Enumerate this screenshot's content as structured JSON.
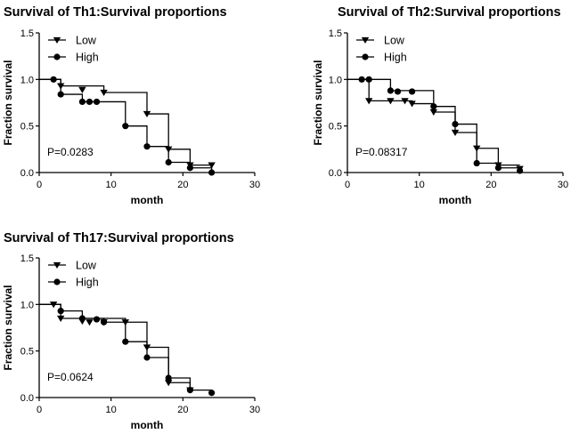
{
  "colors": {
    "ink": "#000000",
    "background": "#ffffff"
  },
  "chart_data": [
    {
      "type": "line",
      "subtype": "kaplan-meier",
      "title": "Survival of Th1:Survival proportions",
      "xlabel": "month",
      "ylabel": "Fraction survival",
      "xlim": [
        0,
        30
      ],
      "ylim": [
        0,
        1.5
      ],
      "xticks": [
        0,
        10,
        20,
        30
      ],
      "yticks": [
        0.0,
        0.5,
        1.0,
        1.5
      ],
      "xtick_labels": [
        "0",
        "10",
        "20",
        "30"
      ],
      "ytick_labels": [
        "0.0",
        "0.5",
        "1.0",
        "1.5"
      ],
      "annotation": "P=0.0283",
      "legend_position": "top-left",
      "series": [
        {
          "name": "Low",
          "marker": "triangle-down",
          "steps": [
            [
              0,
              1.0
            ],
            [
              3,
              0.93
            ],
            [
              9,
              0.86
            ],
            [
              15,
              0.63
            ],
            [
              18,
              0.25
            ],
            [
              21,
              0.08
            ]
          ],
          "end_x": 24,
          "censored": [
            [
              3,
              0.93
            ],
            [
              6,
              0.89
            ],
            [
              9,
              0.86
            ],
            [
              15,
              0.63
            ],
            [
              18,
              0.25
            ],
            [
              21,
              0.08
            ],
            [
              24,
              0.08
            ]
          ]
        },
        {
          "name": "High",
          "marker": "circle",
          "steps": [
            [
              0,
              1.0
            ],
            [
              3,
              0.84
            ],
            [
              6,
              0.76
            ],
            [
              12,
              0.5
            ],
            [
              15,
              0.28
            ],
            [
              18,
              0.11
            ],
            [
              21,
              0.05
            ],
            [
              24,
              0.0
            ]
          ],
          "end_x": 24,
          "censored": [
            [
              2,
              1.0
            ],
            [
              3,
              0.84
            ],
            [
              6,
              0.76
            ],
            [
              7,
              0.76
            ],
            [
              8,
              0.76
            ],
            [
              12,
              0.5
            ],
            [
              15,
              0.28
            ],
            [
              18,
              0.11
            ],
            [
              21,
              0.05
            ],
            [
              24,
              0.0
            ]
          ]
        }
      ]
    },
    {
      "type": "line",
      "subtype": "kaplan-meier",
      "title": "Survival of Th2:Survival proportions",
      "xlabel": "month",
      "ylabel": "Fraction survival",
      "xlim": [
        0,
        30
      ],
      "ylim": [
        0,
        1.5
      ],
      "xticks": [
        0,
        10,
        20,
        30
      ],
      "yticks": [
        0.0,
        0.5,
        1.0,
        1.5
      ],
      "xtick_labels": [
        "0",
        "10",
        "20",
        "30"
      ],
      "ytick_labels": [
        "0.0",
        "0.5",
        "1.0",
        "1.5"
      ],
      "annotation": "P=0.08317",
      "legend_position": "top-left",
      "series": [
        {
          "name": "Low",
          "marker": "triangle-down",
          "steps": [
            [
              0,
              1.0
            ],
            [
              3,
              0.77
            ],
            [
              9,
              0.74
            ],
            [
              12,
              0.65
            ],
            [
              15,
              0.43
            ],
            [
              18,
              0.26
            ],
            [
              21,
              0.08
            ]
          ],
          "end_x": 24,
          "censored": [
            [
              3,
              0.77
            ],
            [
              6,
              0.77
            ],
            [
              8,
              0.77
            ],
            [
              9,
              0.74
            ],
            [
              12,
              0.65
            ],
            [
              15,
              0.43
            ],
            [
              18,
              0.26
            ],
            [
              21,
              0.08
            ],
            [
              24,
              0.04
            ]
          ]
        },
        {
          "name": "High",
          "marker": "circle",
          "steps": [
            [
              0,
              1.0
            ],
            [
              6,
              0.88
            ],
            [
              12,
              0.71
            ],
            [
              15,
              0.52
            ],
            [
              18,
              0.1
            ],
            [
              21,
              0.05
            ],
            [
              24,
              0.02
            ]
          ],
          "end_x": 24,
          "censored": [
            [
              2,
              1.0
            ],
            [
              3,
              1.0
            ],
            [
              6,
              0.88
            ],
            [
              7,
              0.87
            ],
            [
              9,
              0.87
            ],
            [
              12,
              0.71
            ],
            [
              15,
              0.52
            ],
            [
              18,
              0.1
            ],
            [
              21,
              0.05
            ],
            [
              24,
              0.02
            ]
          ]
        }
      ]
    },
    {
      "type": "line",
      "subtype": "kaplan-meier",
      "title": "Survival of Th17:Survival proportions",
      "xlabel": "month",
      "ylabel": "Fraction survival",
      "xlim": [
        0,
        30
      ],
      "ylim": [
        0,
        1.5
      ],
      "xticks": [
        0,
        10,
        20,
        30
      ],
      "yticks": [
        0.0,
        0.5,
        1.0,
        1.5
      ],
      "xtick_labels": [
        "0",
        "10",
        "20",
        "30"
      ],
      "ytick_labels": [
        "0.0",
        "0.5",
        "1.0",
        "1.5"
      ],
      "annotation": "P=0.0624",
      "legend_position": "top-left",
      "series": [
        {
          "name": "Low",
          "marker": "triangle-down",
          "steps": [
            [
              0,
              1.0
            ],
            [
              3,
              0.85
            ],
            [
              9,
              0.81
            ],
            [
              15,
              0.54
            ],
            [
              18,
              0.16
            ],
            [
              21,
              0.08
            ]
          ],
          "end_x": 21,
          "censored": [
            [
              2,
              1.0
            ],
            [
              3,
              0.85
            ],
            [
              6,
              0.82
            ],
            [
              7,
              0.81
            ],
            [
              9,
              0.81
            ],
            [
              12,
              0.81
            ],
            [
              15,
              0.54
            ],
            [
              18,
              0.16
            ],
            [
              21,
              0.08
            ]
          ]
        },
        {
          "name": "High",
          "marker": "circle",
          "steps": [
            [
              0,
              1.0
            ],
            [
              3,
              0.93
            ],
            [
              6,
              0.85
            ],
            [
              12,
              0.6
            ],
            [
              15,
              0.43
            ],
            [
              18,
              0.21
            ],
            [
              21,
              0.08
            ],
            [
              24,
              0.05
            ]
          ],
          "end_x": 24,
          "censored": [
            [
              3,
              0.93
            ],
            [
              6,
              0.85
            ],
            [
              8,
              0.84
            ],
            [
              9,
              0.81
            ],
            [
              12,
              0.6
            ],
            [
              15,
              0.43
            ],
            [
              18,
              0.21
            ],
            [
              21,
              0.08
            ],
            [
              24,
              0.05
            ]
          ]
        }
      ]
    }
  ]
}
